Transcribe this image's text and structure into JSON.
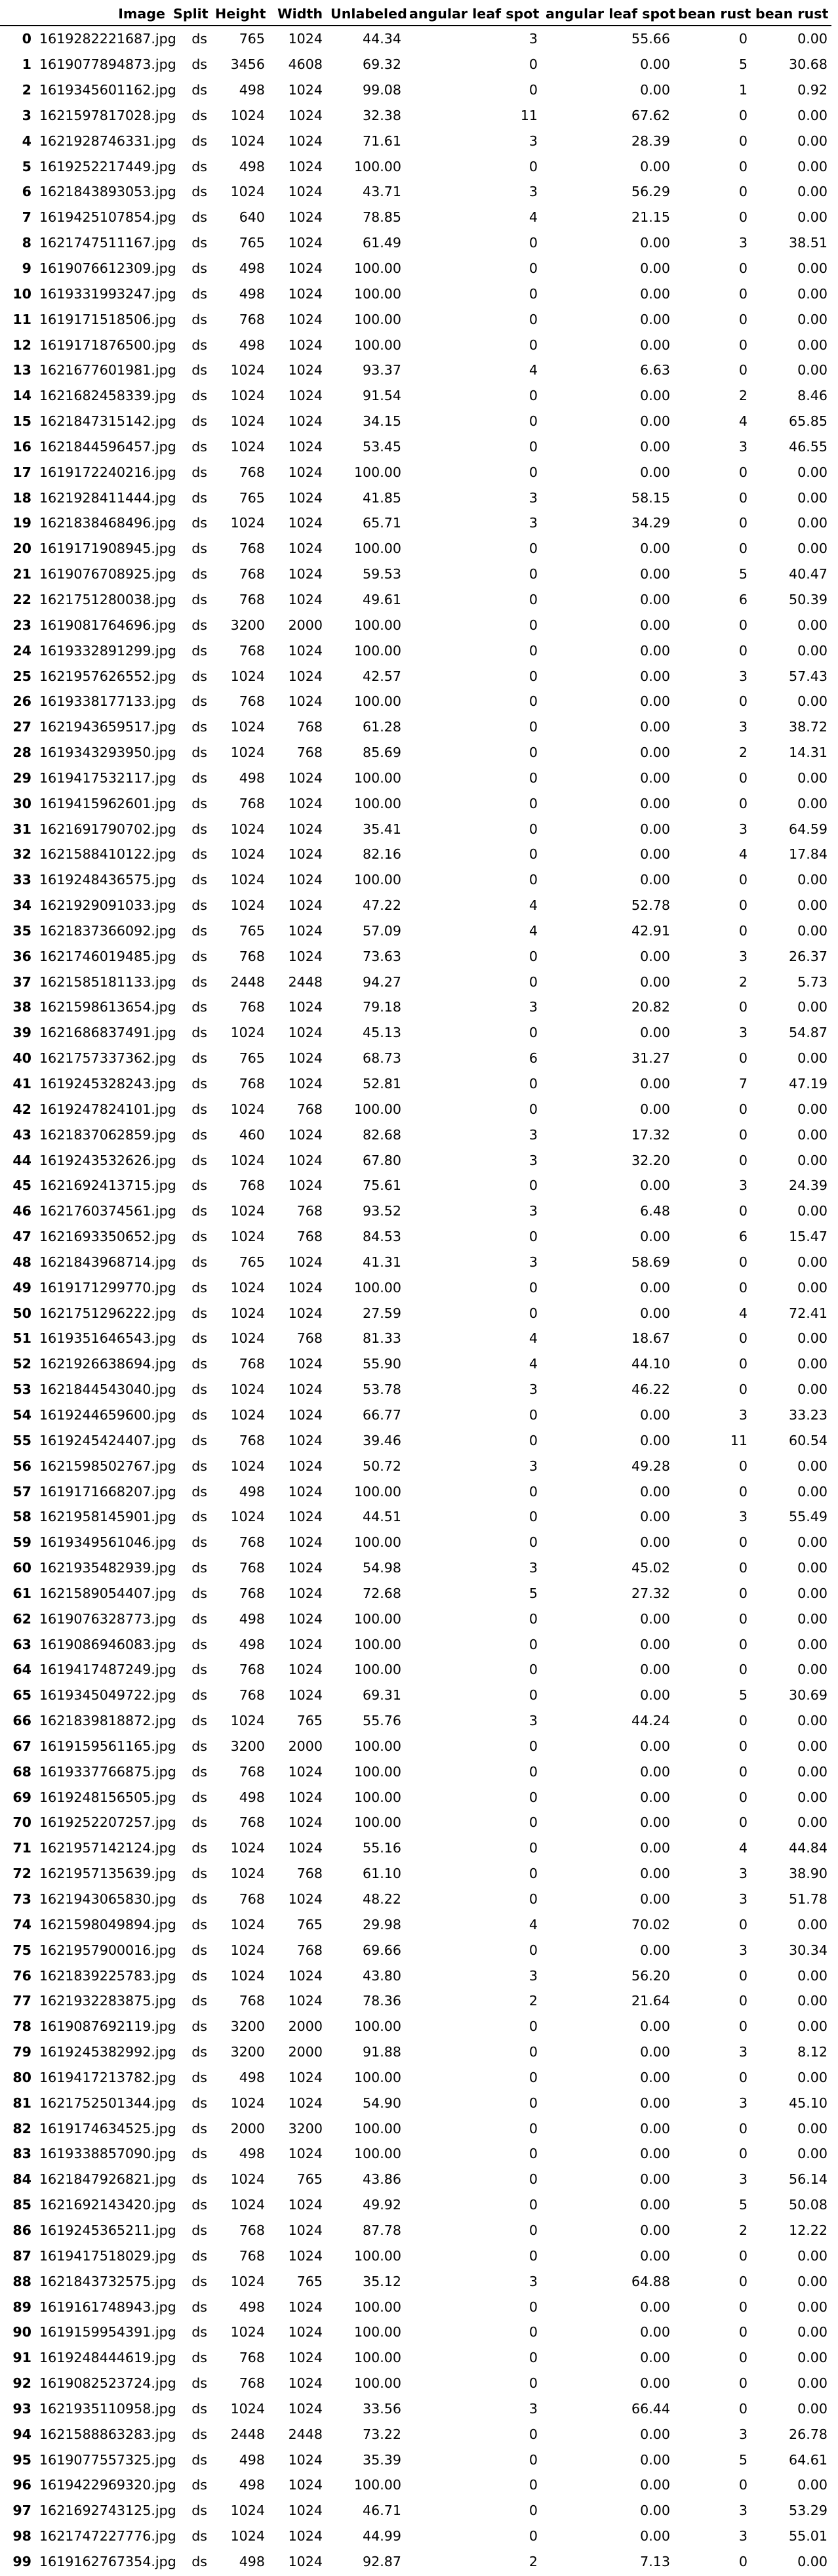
{
  "table": {
    "columns": [
      "",
      "Image",
      "Split",
      "Height",
      "Width",
      "Unlabeled",
      "angular leaf spot",
      "angular leaf spot",
      "bean rust",
      "bean rust"
    ],
    "rows": [
      [
        "0",
        "1619282221687.jpg",
        "ds",
        "765",
        "1024",
        "44.34",
        "3",
        "55.66",
        "0",
        "0.00"
      ],
      [
        "1",
        "1619077894873.jpg",
        "ds",
        "3456",
        "4608",
        "69.32",
        "0",
        "0.00",
        "5",
        "30.68"
      ],
      [
        "2",
        "1619345601162.jpg",
        "ds",
        "498",
        "1024",
        "99.08",
        "0",
        "0.00",
        "1",
        "0.92"
      ],
      [
        "3",
        "1621597817028.jpg",
        "ds",
        "1024",
        "1024",
        "32.38",
        "11",
        "67.62",
        "0",
        "0.00"
      ],
      [
        "4",
        "1621928746331.jpg",
        "ds",
        "1024",
        "1024",
        "71.61",
        "3",
        "28.39",
        "0",
        "0.00"
      ],
      [
        "5",
        "1619252217449.jpg",
        "ds",
        "498",
        "1024",
        "100.00",
        "0",
        "0.00",
        "0",
        "0.00"
      ],
      [
        "6",
        "1621843893053.jpg",
        "ds",
        "1024",
        "1024",
        "43.71",
        "3",
        "56.29",
        "0",
        "0.00"
      ],
      [
        "7",
        "1619425107854.jpg",
        "ds",
        "640",
        "1024",
        "78.85",
        "4",
        "21.15",
        "0",
        "0.00"
      ],
      [
        "8",
        "1621747511167.jpg",
        "ds",
        "765",
        "1024",
        "61.49",
        "0",
        "0.00",
        "3",
        "38.51"
      ],
      [
        "9",
        "1619076612309.jpg",
        "ds",
        "498",
        "1024",
        "100.00",
        "0",
        "0.00",
        "0",
        "0.00"
      ],
      [
        "10",
        "1619331993247.jpg",
        "ds",
        "498",
        "1024",
        "100.00",
        "0",
        "0.00",
        "0",
        "0.00"
      ],
      [
        "11",
        "1619171518506.jpg",
        "ds",
        "768",
        "1024",
        "100.00",
        "0",
        "0.00",
        "0",
        "0.00"
      ],
      [
        "12",
        "1619171876500.jpg",
        "ds",
        "498",
        "1024",
        "100.00",
        "0",
        "0.00",
        "0",
        "0.00"
      ],
      [
        "13",
        "1621677601981.jpg",
        "ds",
        "1024",
        "1024",
        "93.37",
        "4",
        "6.63",
        "0",
        "0.00"
      ],
      [
        "14",
        "1621682458339.jpg",
        "ds",
        "1024",
        "1024",
        "91.54",
        "0",
        "0.00",
        "2",
        "8.46"
      ],
      [
        "15",
        "1621847315142.jpg",
        "ds",
        "1024",
        "1024",
        "34.15",
        "0",
        "0.00",
        "4",
        "65.85"
      ],
      [
        "16",
        "1621844596457.jpg",
        "ds",
        "1024",
        "1024",
        "53.45",
        "0",
        "0.00",
        "3",
        "46.55"
      ],
      [
        "17",
        "1619172240216.jpg",
        "ds",
        "768",
        "1024",
        "100.00",
        "0",
        "0.00",
        "0",
        "0.00"
      ],
      [
        "18",
        "1621928411444.jpg",
        "ds",
        "765",
        "1024",
        "41.85",
        "3",
        "58.15",
        "0",
        "0.00"
      ],
      [
        "19",
        "1621838468496.jpg",
        "ds",
        "1024",
        "1024",
        "65.71",
        "3",
        "34.29",
        "0",
        "0.00"
      ],
      [
        "20",
        "1619171908945.jpg",
        "ds",
        "768",
        "1024",
        "100.00",
        "0",
        "0.00",
        "0",
        "0.00"
      ],
      [
        "21",
        "1619076708925.jpg",
        "ds",
        "768",
        "1024",
        "59.53",
        "0",
        "0.00",
        "5",
        "40.47"
      ],
      [
        "22",
        "1621751280038.jpg",
        "ds",
        "768",
        "1024",
        "49.61",
        "0",
        "0.00",
        "6",
        "50.39"
      ],
      [
        "23",
        "1619081764696.jpg",
        "ds",
        "3200",
        "2000",
        "100.00",
        "0",
        "0.00",
        "0",
        "0.00"
      ],
      [
        "24",
        "1619332891299.jpg",
        "ds",
        "768",
        "1024",
        "100.00",
        "0",
        "0.00",
        "0",
        "0.00"
      ],
      [
        "25",
        "1621957626552.jpg",
        "ds",
        "1024",
        "1024",
        "42.57",
        "0",
        "0.00",
        "3",
        "57.43"
      ],
      [
        "26",
        "1619338177133.jpg",
        "ds",
        "768",
        "1024",
        "100.00",
        "0",
        "0.00",
        "0",
        "0.00"
      ],
      [
        "27",
        "1621943659517.jpg",
        "ds",
        "1024",
        "768",
        "61.28",
        "0",
        "0.00",
        "3",
        "38.72"
      ],
      [
        "28",
        "1619343293950.jpg",
        "ds",
        "1024",
        "768",
        "85.69",
        "0",
        "0.00",
        "2",
        "14.31"
      ],
      [
        "29",
        "1619417532117.jpg",
        "ds",
        "498",
        "1024",
        "100.00",
        "0",
        "0.00",
        "0",
        "0.00"
      ],
      [
        "30",
        "1619415962601.jpg",
        "ds",
        "768",
        "1024",
        "100.00",
        "0",
        "0.00",
        "0",
        "0.00"
      ],
      [
        "31",
        "1621691790702.jpg",
        "ds",
        "1024",
        "1024",
        "35.41",
        "0",
        "0.00",
        "3",
        "64.59"
      ],
      [
        "32",
        "1621588410122.jpg",
        "ds",
        "1024",
        "1024",
        "82.16",
        "0",
        "0.00",
        "4",
        "17.84"
      ],
      [
        "33",
        "1619248436575.jpg",
        "ds",
        "1024",
        "1024",
        "100.00",
        "0",
        "0.00",
        "0",
        "0.00"
      ],
      [
        "34",
        "1621929091033.jpg",
        "ds",
        "1024",
        "1024",
        "47.22",
        "4",
        "52.78",
        "0",
        "0.00"
      ],
      [
        "35",
        "1621837366092.jpg",
        "ds",
        "765",
        "1024",
        "57.09",
        "4",
        "42.91",
        "0",
        "0.00"
      ],
      [
        "36",
        "1621746019485.jpg",
        "ds",
        "768",
        "1024",
        "73.63",
        "0",
        "0.00",
        "3",
        "26.37"
      ],
      [
        "37",
        "1621585181133.jpg",
        "ds",
        "2448",
        "2448",
        "94.27",
        "0",
        "0.00",
        "2",
        "5.73"
      ],
      [
        "38",
        "1621598613654.jpg",
        "ds",
        "768",
        "1024",
        "79.18",
        "3",
        "20.82",
        "0",
        "0.00"
      ],
      [
        "39",
        "1621686837491.jpg",
        "ds",
        "1024",
        "1024",
        "45.13",
        "0",
        "0.00",
        "3",
        "54.87"
      ],
      [
        "40",
        "1621757337362.jpg",
        "ds",
        "765",
        "1024",
        "68.73",
        "6",
        "31.27",
        "0",
        "0.00"
      ],
      [
        "41",
        "1619245328243.jpg",
        "ds",
        "768",
        "1024",
        "52.81",
        "0",
        "0.00",
        "7",
        "47.19"
      ],
      [
        "42",
        "1619247824101.jpg",
        "ds",
        "1024",
        "768",
        "100.00",
        "0",
        "0.00",
        "0",
        "0.00"
      ],
      [
        "43",
        "1621837062859.jpg",
        "ds",
        "460",
        "1024",
        "82.68",
        "3",
        "17.32",
        "0",
        "0.00"
      ],
      [
        "44",
        "1619243532626.jpg",
        "ds",
        "1024",
        "1024",
        "67.80",
        "3",
        "32.20",
        "0",
        "0.00"
      ],
      [
        "45",
        "1621692413715.jpg",
        "ds",
        "768",
        "1024",
        "75.61",
        "0",
        "0.00",
        "3",
        "24.39"
      ],
      [
        "46",
        "1621760374561.jpg",
        "ds",
        "1024",
        "768",
        "93.52",
        "3",
        "6.48",
        "0",
        "0.00"
      ],
      [
        "47",
        "1621693350652.jpg",
        "ds",
        "1024",
        "768",
        "84.53",
        "0",
        "0.00",
        "6",
        "15.47"
      ],
      [
        "48",
        "1621843968714.jpg",
        "ds",
        "765",
        "1024",
        "41.31",
        "3",
        "58.69",
        "0",
        "0.00"
      ],
      [
        "49",
        "1619171299770.jpg",
        "ds",
        "1024",
        "1024",
        "100.00",
        "0",
        "0.00",
        "0",
        "0.00"
      ],
      [
        "50",
        "1621751296222.jpg",
        "ds",
        "1024",
        "1024",
        "27.59",
        "0",
        "0.00",
        "4",
        "72.41"
      ],
      [
        "51",
        "1619351646543.jpg",
        "ds",
        "1024",
        "768",
        "81.33",
        "4",
        "18.67",
        "0",
        "0.00"
      ],
      [
        "52",
        "1621926638694.jpg",
        "ds",
        "768",
        "1024",
        "55.90",
        "4",
        "44.10",
        "0",
        "0.00"
      ],
      [
        "53",
        "1621844543040.jpg",
        "ds",
        "1024",
        "1024",
        "53.78",
        "3",
        "46.22",
        "0",
        "0.00"
      ],
      [
        "54",
        "1619244659600.jpg",
        "ds",
        "1024",
        "1024",
        "66.77",
        "0",
        "0.00",
        "3",
        "33.23"
      ],
      [
        "55",
        "1619245424407.jpg",
        "ds",
        "768",
        "1024",
        "39.46",
        "0",
        "0.00",
        "11",
        "60.54"
      ],
      [
        "56",
        "1621598502767.jpg",
        "ds",
        "1024",
        "1024",
        "50.72",
        "3",
        "49.28",
        "0",
        "0.00"
      ],
      [
        "57",
        "1619171668207.jpg",
        "ds",
        "498",
        "1024",
        "100.00",
        "0",
        "0.00",
        "0",
        "0.00"
      ],
      [
        "58",
        "1621958145901.jpg",
        "ds",
        "1024",
        "1024",
        "44.51",
        "0",
        "0.00",
        "3",
        "55.49"
      ],
      [
        "59",
        "1619349561046.jpg",
        "ds",
        "768",
        "1024",
        "100.00",
        "0",
        "0.00",
        "0",
        "0.00"
      ],
      [
        "60",
        "1621935482939.jpg",
        "ds",
        "768",
        "1024",
        "54.98",
        "3",
        "45.02",
        "0",
        "0.00"
      ],
      [
        "61",
        "1621589054407.jpg",
        "ds",
        "768",
        "1024",
        "72.68",
        "5",
        "27.32",
        "0",
        "0.00"
      ],
      [
        "62",
        "1619076328773.jpg",
        "ds",
        "498",
        "1024",
        "100.00",
        "0",
        "0.00",
        "0",
        "0.00"
      ],
      [
        "63",
        "1619086946083.jpg",
        "ds",
        "498",
        "1024",
        "100.00",
        "0",
        "0.00",
        "0",
        "0.00"
      ],
      [
        "64",
        "1619417487249.jpg",
        "ds",
        "768",
        "1024",
        "100.00",
        "0",
        "0.00",
        "0",
        "0.00"
      ],
      [
        "65",
        "1619345049722.jpg",
        "ds",
        "768",
        "1024",
        "69.31",
        "0",
        "0.00",
        "5",
        "30.69"
      ],
      [
        "66",
        "1621839818872.jpg",
        "ds",
        "1024",
        "765",
        "55.76",
        "3",
        "44.24",
        "0",
        "0.00"
      ],
      [
        "67",
        "1619159561165.jpg",
        "ds",
        "3200",
        "2000",
        "100.00",
        "0",
        "0.00",
        "0",
        "0.00"
      ],
      [
        "68",
        "1619337766875.jpg",
        "ds",
        "768",
        "1024",
        "100.00",
        "0",
        "0.00",
        "0",
        "0.00"
      ],
      [
        "69",
        "1619248156505.jpg",
        "ds",
        "498",
        "1024",
        "100.00",
        "0",
        "0.00",
        "0",
        "0.00"
      ],
      [
        "70",
        "1619252207257.jpg",
        "ds",
        "768",
        "1024",
        "100.00",
        "0",
        "0.00",
        "0",
        "0.00"
      ],
      [
        "71",
        "1621957142124.jpg",
        "ds",
        "1024",
        "1024",
        "55.16",
        "0",
        "0.00",
        "4",
        "44.84"
      ],
      [
        "72",
        "1621957135639.jpg",
        "ds",
        "1024",
        "768",
        "61.10",
        "0",
        "0.00",
        "3",
        "38.90"
      ],
      [
        "73",
        "1621943065830.jpg",
        "ds",
        "768",
        "1024",
        "48.22",
        "0",
        "0.00",
        "3",
        "51.78"
      ],
      [
        "74",
        "1621598049894.jpg",
        "ds",
        "1024",
        "765",
        "29.98",
        "4",
        "70.02",
        "0",
        "0.00"
      ],
      [
        "75",
        "1621957900016.jpg",
        "ds",
        "1024",
        "768",
        "69.66",
        "0",
        "0.00",
        "3",
        "30.34"
      ],
      [
        "76",
        "1621839225783.jpg",
        "ds",
        "1024",
        "1024",
        "43.80",
        "3",
        "56.20",
        "0",
        "0.00"
      ],
      [
        "77",
        "1621932283875.jpg",
        "ds",
        "768",
        "1024",
        "78.36",
        "2",
        "21.64",
        "0",
        "0.00"
      ],
      [
        "78",
        "1619087692119.jpg",
        "ds",
        "3200",
        "2000",
        "100.00",
        "0",
        "0.00",
        "0",
        "0.00"
      ],
      [
        "79",
        "1619245382992.jpg",
        "ds",
        "3200",
        "2000",
        "91.88",
        "0",
        "0.00",
        "3",
        "8.12"
      ],
      [
        "80",
        "1619417213782.jpg",
        "ds",
        "498",
        "1024",
        "100.00",
        "0",
        "0.00",
        "0",
        "0.00"
      ],
      [
        "81",
        "1621752501344.jpg",
        "ds",
        "1024",
        "1024",
        "54.90",
        "0",
        "0.00",
        "3",
        "45.10"
      ],
      [
        "82",
        "1619174634525.jpg",
        "ds",
        "2000",
        "3200",
        "100.00",
        "0",
        "0.00",
        "0",
        "0.00"
      ],
      [
        "83",
        "1619338857090.jpg",
        "ds",
        "498",
        "1024",
        "100.00",
        "0",
        "0.00",
        "0",
        "0.00"
      ],
      [
        "84",
        "1621847926821.jpg",
        "ds",
        "1024",
        "765",
        "43.86",
        "0",
        "0.00",
        "3",
        "56.14"
      ],
      [
        "85",
        "1621692143420.jpg",
        "ds",
        "1024",
        "1024",
        "49.92",
        "0",
        "0.00",
        "5",
        "50.08"
      ],
      [
        "86",
        "1619245365211.jpg",
        "ds",
        "768",
        "1024",
        "87.78",
        "0",
        "0.00",
        "2",
        "12.22"
      ],
      [
        "87",
        "1619417518029.jpg",
        "ds",
        "768",
        "1024",
        "100.00",
        "0",
        "0.00",
        "0",
        "0.00"
      ],
      [
        "88",
        "1621843732575.jpg",
        "ds",
        "1024",
        "765",
        "35.12",
        "3",
        "64.88",
        "0",
        "0.00"
      ],
      [
        "89",
        "1619161748943.jpg",
        "ds",
        "498",
        "1024",
        "100.00",
        "0",
        "0.00",
        "0",
        "0.00"
      ],
      [
        "90",
        "1619159954391.jpg",
        "ds",
        "1024",
        "1024",
        "100.00",
        "0",
        "0.00",
        "0",
        "0.00"
      ],
      [
        "91",
        "1619248444619.jpg",
        "ds",
        "768",
        "1024",
        "100.00",
        "0",
        "0.00",
        "0",
        "0.00"
      ],
      [
        "92",
        "1619082523724.jpg",
        "ds",
        "768",
        "1024",
        "100.00",
        "0",
        "0.00",
        "0",
        "0.00"
      ],
      [
        "93",
        "1621935110958.jpg",
        "ds",
        "1024",
        "1024",
        "33.56",
        "3",
        "66.44",
        "0",
        "0.00"
      ],
      [
        "94",
        "1621588863283.jpg",
        "ds",
        "2448",
        "2448",
        "73.22",
        "0",
        "0.00",
        "3",
        "26.78"
      ],
      [
        "95",
        "1619077557325.jpg",
        "ds",
        "498",
        "1024",
        "35.39",
        "0",
        "0.00",
        "5",
        "64.61"
      ],
      [
        "96",
        "1619422969320.jpg",
        "ds",
        "498",
        "1024",
        "100.00",
        "0",
        "0.00",
        "0",
        "0.00"
      ],
      [
        "97",
        "1621692743125.jpg",
        "ds",
        "1024",
        "1024",
        "46.71",
        "0",
        "0.00",
        "3",
        "53.29"
      ],
      [
        "98",
        "1621747227776.jpg",
        "ds",
        "1024",
        "1024",
        "44.99",
        "0",
        "0.00",
        "3",
        "55.01"
      ],
      [
        "99",
        "1619162767354.jpg",
        "ds",
        "498",
        "1024",
        "92.87",
        "2",
        "7.13",
        "0",
        "0.00"
      ]
    ]
  }
}
